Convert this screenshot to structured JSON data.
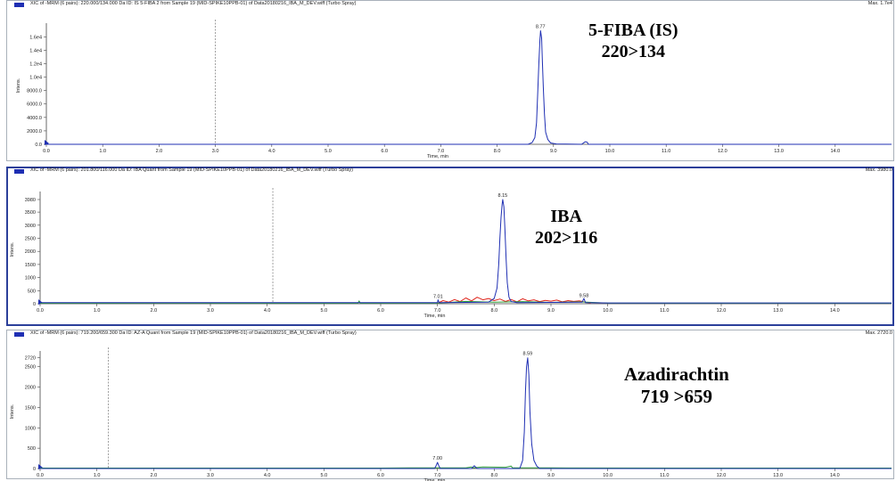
{
  "chart_data": [
    {
      "type": "line",
      "title": "XIC of -MRM (6 pairs): 220.000/134.000 Da ID: IS 5-FIBA 2 from Sample 19 (MID-SPIKE10PPB-01) of Data20180216_IBA_M_DEV.wiff (Turbo Spray)",
      "max_label": "Max. 1.7e4",
      "annotation": [
        "5-FIBA (IS)",
        "220>134"
      ],
      "xlabel": "Time, min",
      "ylabel": "Intens.",
      "xlim": [
        0,
        15.0
      ],
      "ylim": [
        0,
        17500
      ],
      "x_ticks": [
        "0.0",
        "1.0",
        "2.0",
        "3.0",
        "4.0",
        "5.0",
        "6.0",
        "7.0",
        "8.0",
        "9.0",
        "10.0",
        "11.0",
        "12.0",
        "13.0",
        "14.0"
      ],
      "y_ticks": [
        {
          "v": 0,
          "label": "0.0"
        },
        {
          "v": 2000,
          "label": "2000.0"
        },
        {
          "v": 4000,
          "label": "4000.0"
        },
        {
          "v": 6000,
          "label": "6000.0"
        },
        {
          "v": 8000,
          "label": "8000.0"
        },
        {
          "v": 10000,
          "label": "1.0e4"
        },
        {
          "v": 12000,
          "label": "1.2e4"
        },
        {
          "v": 14000,
          "label": "1.4e4"
        },
        {
          "v": 16000,
          "label": "1.6e4"
        }
      ],
      "marker_x": 3.0,
      "peak_labels": [
        {
          "x": 8.77,
          "y": 16900,
          "label": "8.77"
        }
      ],
      "series": [
        {
          "color": "#1f2fb3",
          "x": [
            0,
            8.55,
            8.62,
            8.67,
            8.7,
            8.72,
            8.74,
            8.76,
            8.77,
            8.79,
            8.8,
            8.82,
            8.84,
            8.86,
            8.9,
            8.95,
            9.05,
            9.5,
            9.55,
            9.57,
            9.6,
            9.62,
            9.7,
            15
          ],
          "y": [
            0,
            0,
            250,
            1000,
            3200,
            7500,
            12000,
            15500,
            16900,
            15800,
            13000,
            8500,
            4500,
            1800,
            700,
            200,
            50,
            0,
            300,
            380,
            300,
            0,
            0,
            0
          ]
        }
      ]
    },
    {
      "type": "line",
      "title": "XIC of -MRM (6 pairs): 201.800/116.000 Da ID: IBA Quant from Sample 19 (MID-SPIKE10PPB-01) of Data20180216_IBA_M_DEV.wiff (Turbo Spray)",
      "max_label": "Max. 3980.0",
      "annotation": [
        "IBA",
        "202>116"
      ],
      "xlabel": "Time, min",
      "ylabel": "Intens.",
      "xlim": [
        0,
        15.0
      ],
      "ylim": [
        0,
        4150
      ],
      "x_ticks": [
        "0.0",
        "1.0",
        "2.0",
        "3.0",
        "4.0",
        "5.0",
        "6.0",
        "7.0",
        "8.0",
        "9.0",
        "10.0",
        "11.0",
        "12.0",
        "13.0",
        "14.0"
      ],
      "y_ticks": [
        {
          "v": 0,
          "label": "0"
        },
        {
          "v": 500,
          "label": "500"
        },
        {
          "v": 1000,
          "label": "1000"
        },
        {
          "v": 1500,
          "label": "1500"
        },
        {
          "v": 2000,
          "label": "2000"
        },
        {
          "v": 2500,
          "label": "2500"
        },
        {
          "v": 3000,
          "label": "3000"
        },
        {
          "v": 3500,
          "label": "3500"
        },
        {
          "v": 3980,
          "label": "3980"
        }
      ],
      "marker_x": 4.1,
      "peak_labels": [
        {
          "x": 7.01,
          "y": 120,
          "label": "7.01"
        },
        {
          "x": 8.15,
          "y": 3980,
          "label": "8.15"
        },
        {
          "x": 9.58,
          "y": 150,
          "label": "9.58"
        }
      ],
      "series": [
        {
          "color": "#1f2fb3",
          "x": [
            0,
            7.0,
            7.01,
            7.03,
            7.5,
            7.9,
            8.0,
            8.05,
            8.08,
            8.1,
            8.12,
            8.14,
            8.15,
            8.17,
            8.19,
            8.21,
            8.23,
            8.26,
            8.3,
            8.4,
            9.0,
            9.55,
            9.58,
            9.61,
            10,
            15
          ],
          "y": [
            40,
            40,
            150,
            40,
            50,
            60,
            200,
            600,
            1500,
            2500,
            3300,
            3800,
            3980,
            3700,
            2800,
            1700,
            800,
            250,
            80,
            40,
            50,
            60,
            200,
            40,
            30,
            30
          ]
        },
        {
          "color": "#e0241b",
          "x": [
            7.0,
            7.1,
            7.2,
            7.3,
            7.4,
            7.5,
            7.6,
            7.7,
            7.8,
            7.9,
            8.0,
            8.1,
            8.2,
            8.3,
            8.4,
            8.5,
            8.6,
            8.7,
            8.8,
            8.9,
            9.0,
            9.1,
            9.2,
            9.3,
            9.4,
            9.5,
            9.6,
            9.7
          ],
          "y": [
            20,
            120,
            60,
            160,
            80,
            220,
            110,
            250,
            150,
            200,
            120,
            180,
            90,
            160,
            70,
            190,
            110,
            150,
            80,
            130,
            100,
            140,
            70,
            120,
            90,
            110,
            60,
            20
          ]
        },
        {
          "color": "#2e9d3a",
          "x": [
            0,
            2,
            4,
            5.6,
            5.62,
            5.64,
            7,
            7.5,
            8,
            8.5,
            9,
            9.5,
            10,
            15
          ],
          "y": [
            20,
            25,
            20,
            20,
            110,
            20,
            25,
            90,
            60,
            80,
            50,
            70,
            25,
            20
          ]
        }
      ]
    },
    {
      "type": "line",
      "title": "XIC of -MRM (6 pairs): 719.200/659.300 Da ID: AZ-A Quant from Sample 19 (MID-SPIKE10PPB-01) of Data20180216_IBA_M_DEV.wiff (Turbo Spray)",
      "max_label": "Max. 2720.0",
      "annotation": [
        "Azadirachtin",
        "719 >659"
      ],
      "xlabel": "Time, min",
      "ylabel": "Intens.",
      "xlim": [
        0,
        15.0
      ],
      "ylim": [
        0,
        2800
      ],
      "x_ticks": [
        "0.0",
        "1.0",
        "2.0",
        "3.0",
        "4.0",
        "5.0",
        "6.0",
        "7.0",
        "8.0",
        "9.0",
        "10.0",
        "11.0",
        "12.0",
        "13.0",
        "14.0"
      ],
      "y_ticks": [
        {
          "v": 0,
          "label": "0"
        },
        {
          "v": 500,
          "label": "500"
        },
        {
          "v": 1000,
          "label": "1000"
        },
        {
          "v": 1500,
          "label": "1500"
        },
        {
          "v": 2000,
          "label": "2000"
        },
        {
          "v": 2500,
          "label": "2500"
        },
        {
          "v": 2720,
          "label": "2720"
        }
      ],
      "marker_x": 1.2,
      "peak_labels": [
        {
          "x": 7.0,
          "y": 150,
          "label": "7.00"
        },
        {
          "x": 8.59,
          "y": 2720,
          "label": "8.59"
        }
      ],
      "series": [
        {
          "color": "#1f2fb3",
          "x": [
            0,
            6.95,
            6.98,
            7.0,
            7.02,
            7.05,
            7.6,
            7.65,
            7.7,
            8.45,
            8.5,
            8.53,
            8.55,
            8.57,
            8.59,
            8.61,
            8.63,
            8.66,
            8.7,
            8.75,
            8.8,
            15
          ],
          "y": [
            0,
            0,
            80,
            150,
            80,
            0,
            0,
            70,
            0,
            0,
            200,
            900,
            1900,
            2500,
            2720,
            2300,
            1400,
            600,
            200,
            60,
            0,
            0
          ]
        },
        {
          "color": "#2e9d3a",
          "x": [
            0,
            3,
            6,
            6.5,
            7.5,
            7.6,
            7.62,
            7.8,
            8.2,
            8.3,
            8.32,
            9,
            12,
            15
          ],
          "y": [
            10,
            10,
            10,
            15,
            15,
            40,
            15,
            40,
            30,
            60,
            20,
            15,
            10,
            10
          ]
        }
      ]
    }
  ]
}
